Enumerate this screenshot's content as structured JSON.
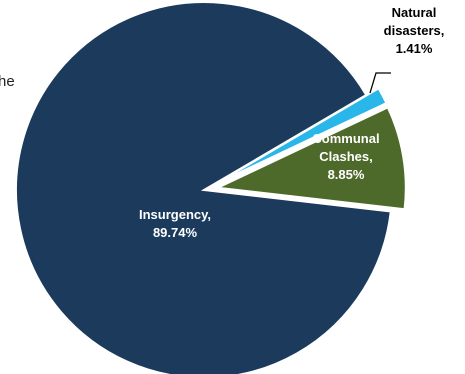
{
  "chart_data": {
    "type": "pie",
    "slices": [
      {
        "label": "Insurgency",
        "value": 89.74,
        "display_name": "Insurgency,",
        "display_value": "89.74%",
        "color": "#1b3a5c",
        "label_color": "#ffffff"
      },
      {
        "label": "Natural disasters",
        "value": 1.41,
        "display_name": "Natural disasters,",
        "display_value": "1.41%",
        "color": "#29b6e8",
        "label_color": "#000000"
      },
      {
        "label": "Communal Clashes",
        "value": 8.85,
        "display_name": "Communal Clashes,",
        "display_value": "8.85%",
        "color": "#4e6a2a",
        "label_color": "#ffffff"
      }
    ],
    "legend": "none",
    "title": ""
  },
  "fragment_text": "he"
}
